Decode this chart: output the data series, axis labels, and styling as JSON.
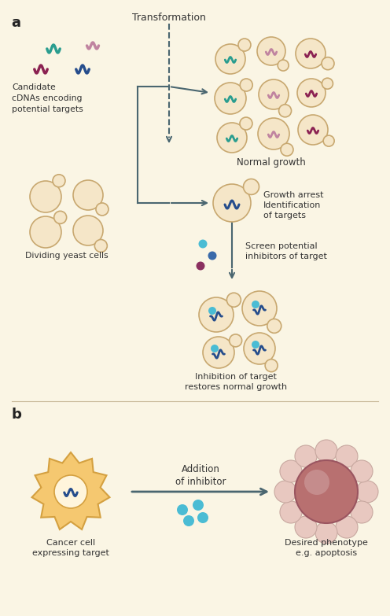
{
  "bg_color": "#FAF5E4",
  "panel_a_label": "a",
  "panel_b_label": "b",
  "title_transformation": "Transformation",
  "label_candidate": "Candidate\ncDNAs encoding\npotential targets",
  "label_normal": "Normal growth",
  "label_dividing": "Dividing yeast cells",
  "label_growth_arrest": "Growth arrest\nIdentification\nof targets",
  "label_screen": "Screen potential\ninhibitors of target",
  "label_inhibition": "Inhibition of target\nrestores normal growth",
  "label_cancer": "Cancer cell\nexpressing target",
  "label_addition": "Addition\nof inhibitor",
  "label_desired": "Desired phenotype\ne.g. apoptosis",
  "color_teal": "#2A9D8F",
  "color_pink": "#C084A0",
  "color_dark_blue": "#264D8C",
  "color_maroon": "#8B2252",
  "color_yeast_fill": "#F5E6C8",
  "color_yeast_edge": "#C8A870",
  "color_arrow": "#4A6670",
  "color_text": "#333333",
  "color_cancer_fill": "#F5C870",
  "color_cancer_edge": "#D4A040",
  "color_apoptosis_center": "#B87070",
  "color_apoptosis_bubble": "#E8C8C0",
  "color_inhibitor_dot": "#4ABCD4",
  "color_screen_dot_teal": "#4ABCD4",
  "color_screen_dot_blue": "#3A6AAA",
  "color_screen_dot_maroon": "#8B3060"
}
